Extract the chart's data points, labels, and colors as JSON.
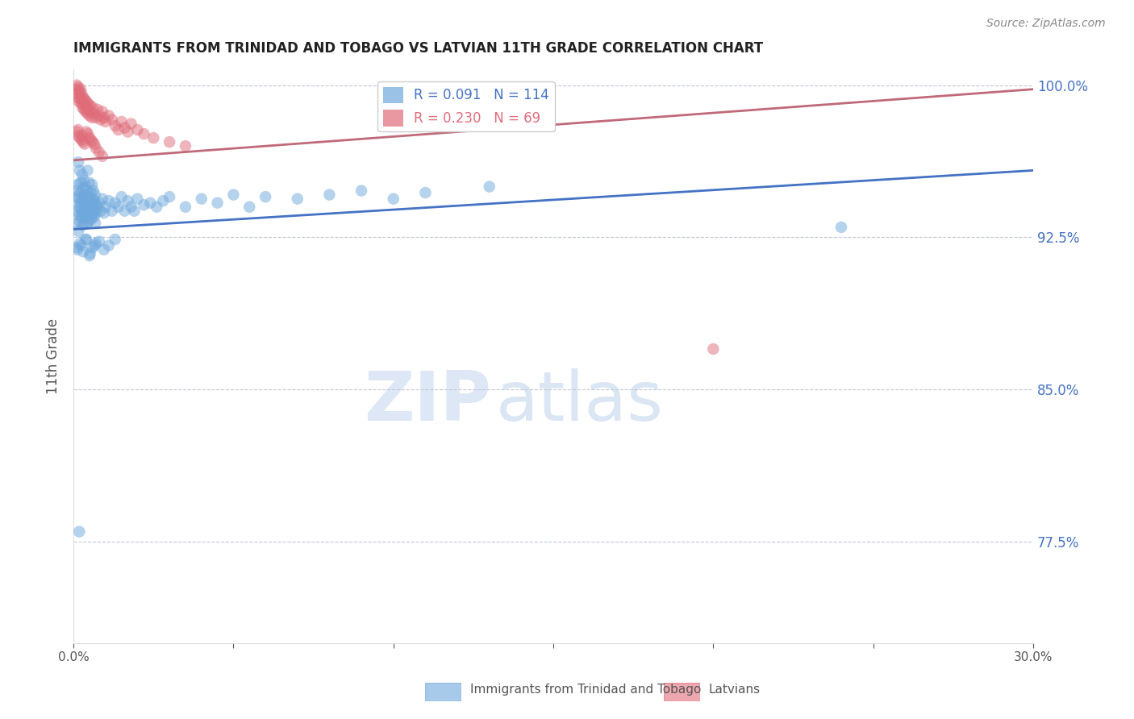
{
  "title": "IMMIGRANTS FROM TRINIDAD AND TOBAGO VS LATVIAN 11TH GRADE CORRELATION CHART",
  "source": "Source: ZipAtlas.com",
  "ylabel": "11th Grade",
  "series1_label": "Immigrants from Trinidad and Tobago",
  "series2_label": "Latvians",
  "series1_color": "#6fa8dc",
  "series2_color": "#e06c7a",
  "series1_R": 0.091,
  "series1_N": 114,
  "series2_R": 0.23,
  "series2_N": 69,
  "xlim": [
    0.0,
    0.3
  ],
  "ylim": [
    0.725,
    1.008
  ],
  "xticks": [
    0.0,
    0.05,
    0.1,
    0.15,
    0.2,
    0.25,
    0.3
  ],
  "xtick_labels": [
    "0.0%",
    "",
    "",
    "",
    "",
    "",
    "30.0%"
  ],
  "ytick_positions": [
    0.775,
    0.85,
    0.925,
    1.0
  ],
  "ytick_labels": [
    "77.5%",
    "85.0%",
    "92.5%",
    "100.0%"
  ],
  "watermark_zip": "ZIP",
  "watermark_atlas": "atlas",
  "trend_line_color_blue": "#4472c4",
  "trend_line_color_pink": "#c0697a",
  "trend1_x": [
    0.0,
    0.3
  ],
  "trend1_y": [
    0.929,
    0.958
  ],
  "trend2_x": [
    0.0,
    0.3
  ],
  "trend2_y": [
    0.963,
    0.998
  ],
  "series1_x": [
    0.0008,
    0.001,
    0.001,
    0.0012,
    0.0013,
    0.0015,
    0.0015,
    0.0016,
    0.0017,
    0.0018,
    0.0019,
    0.002,
    0.002,
    0.0021,
    0.0022,
    0.0023,
    0.0024,
    0.0025,
    0.0026,
    0.0027,
    0.0028,
    0.0029,
    0.003,
    0.0031,
    0.0032,
    0.0033,
    0.0034,
    0.0035,
    0.0036,
    0.0037,
    0.0038,
    0.0039,
    0.004,
    0.0041,
    0.0042,
    0.0043,
    0.0044,
    0.0045,
    0.0046,
    0.0047,
    0.0048,
    0.0049,
    0.005,
    0.0051,
    0.0052,
    0.0053,
    0.0054,
    0.0055,
    0.0056,
    0.0057,
    0.0058,
    0.0059,
    0.006,
    0.0061,
    0.0062,
    0.0063,
    0.0064,
    0.0065,
    0.0066,
    0.0067,
    0.0068,
    0.0069,
    0.007,
    0.0075,
    0.008,
    0.0085,
    0.009,
    0.0095,
    0.01,
    0.011,
    0.012,
    0.013,
    0.014,
    0.015,
    0.016,
    0.017,
    0.018,
    0.019,
    0.02,
    0.022,
    0.024,
    0.026,
    0.028,
    0.03,
    0.035,
    0.04,
    0.045,
    0.05,
    0.055,
    0.06,
    0.07,
    0.08,
    0.09,
    0.1,
    0.11,
    0.13,
    0.001,
    0.002,
    0.003,
    0.004,
    0.005,
    0.006,
    0.007,
    0.0012,
    0.0025,
    0.0038,
    0.0052,
    0.0066,
    0.008,
    0.0095,
    0.011,
    0.013,
    0.0018,
    0.24
  ],
  "series1_y": [
    0.938,
    0.932,
    0.948,
    0.945,
    0.951,
    0.928,
    0.962,
    0.944,
    0.94,
    0.936,
    0.958,
    0.942,
    0.933,
    0.947,
    0.952,
    0.939,
    0.935,
    0.943,
    0.937,
    0.956,
    0.931,
    0.949,
    0.944,
    0.938,
    0.953,
    0.94,
    0.932,
    0.946,
    0.936,
    0.95,
    0.942,
    0.935,
    0.948,
    0.939,
    0.944,
    0.932,
    0.958,
    0.941,
    0.937,
    0.945,
    0.933,
    0.952,
    0.94,
    0.936,
    0.943,
    0.938,
    0.947,
    0.934,
    0.942,
    0.937,
    0.951,
    0.939,
    0.944,
    0.936,
    0.948,
    0.94,
    0.935,
    0.943,
    0.938,
    0.946,
    0.932,
    0.941,
    0.937,
    0.94,
    0.942,
    0.938,
    0.944,
    0.937,
    0.94,
    0.943,
    0.938,
    0.942,
    0.94,
    0.945,
    0.938,
    0.943,
    0.94,
    0.938,
    0.944,
    0.941,
    0.942,
    0.94,
    0.943,
    0.945,
    0.94,
    0.944,
    0.942,
    0.946,
    0.94,
    0.945,
    0.944,
    0.946,
    0.948,
    0.944,
    0.947,
    0.95,
    0.92,
    0.922,
    0.918,
    0.924,
    0.916,
    0.92,
    0.922,
    0.919,
    0.921,
    0.924,
    0.917,
    0.921,
    0.923,
    0.919,
    0.921,
    0.924,
    0.78,
    0.93
  ],
  "series2_x": [
    0.0008,
    0.001,
    0.0012,
    0.0013,
    0.0015,
    0.0016,
    0.0018,
    0.002,
    0.0021,
    0.0022,
    0.0024,
    0.0025,
    0.0027,
    0.0028,
    0.003,
    0.0032,
    0.0033,
    0.0035,
    0.0036,
    0.0038,
    0.004,
    0.0042,
    0.0044,
    0.0045,
    0.0047,
    0.005,
    0.0052,
    0.0055,
    0.0058,
    0.006,
    0.0065,
    0.007,
    0.0075,
    0.008,
    0.0085,
    0.009,
    0.0095,
    0.01,
    0.011,
    0.012,
    0.013,
    0.014,
    0.015,
    0.016,
    0.017,
    0.018,
    0.02,
    0.022,
    0.025,
    0.03,
    0.035,
    0.0015,
    0.0025,
    0.0035,
    0.0045,
    0.0055,
    0.0065,
    0.001,
    0.002,
    0.003,
    0.004,
    0.005,
    0.006,
    0.007,
    0.008,
    0.009,
    0.0014,
    0.0028,
    0.2
  ],
  "series2_y": [
    0.998,
    1.0,
    0.996,
    0.994,
    0.999,
    0.992,
    0.997,
    0.995,
    0.993,
    0.998,
    0.991,
    0.996,
    0.993,
    0.989,
    0.994,
    0.991,
    0.988,
    0.993,
    0.99,
    0.987,
    0.992,
    0.989,
    0.986,
    0.991,
    0.988,
    0.985,
    0.99,
    0.987,
    0.984,
    0.989,
    0.986,
    0.984,
    0.988,
    0.985,
    0.983,
    0.987,
    0.984,
    0.982,
    0.985,
    0.983,
    0.98,
    0.978,
    0.982,
    0.979,
    0.977,
    0.981,
    0.978,
    0.976,
    0.974,
    0.972,
    0.97,
    0.975,
    0.973,
    0.971,
    0.976,
    0.973,
    0.971,
    0.977,
    0.974,
    0.972,
    0.977,
    0.974,
    0.972,
    0.969,
    0.967,
    0.965,
    0.978,
    0.975,
    0.87
  ]
}
